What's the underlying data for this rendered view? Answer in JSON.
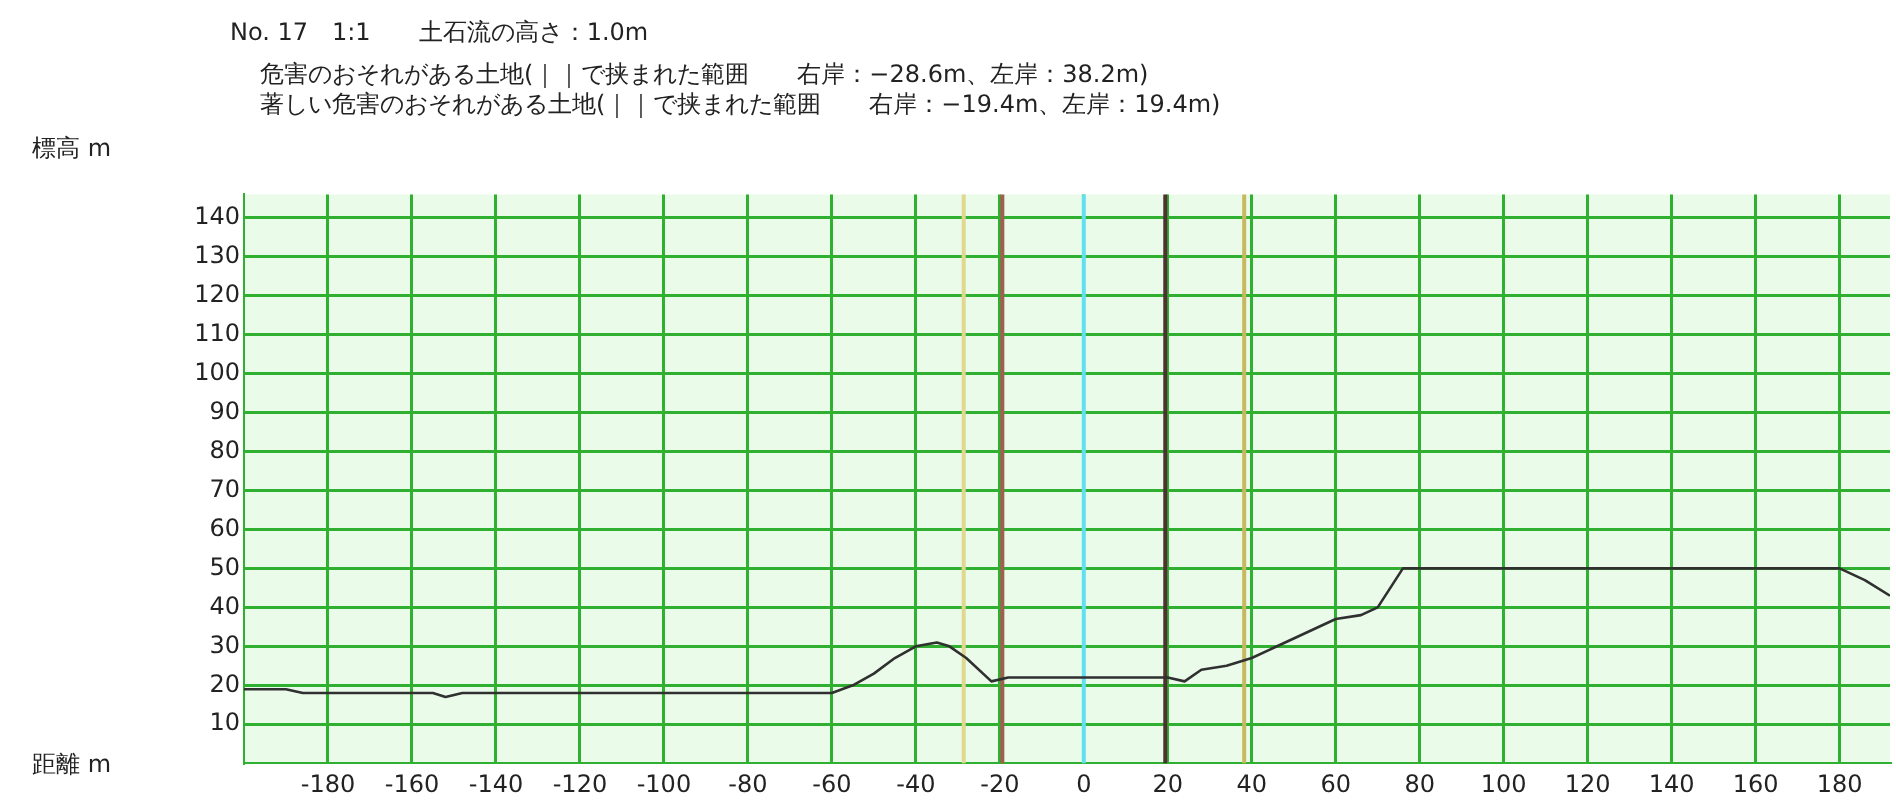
{
  "chart_data": {
    "type": "line",
    "title": "No. 17　1:1　　土石流の高さ：1.0m",
    "annotations": [
      "危害のおそれがある土地(｜｜で挟まれた範囲　　右岸：−28.6m、左岸：38.2m)",
      "著しい危害のおそれがある土地(｜｜で挟まれた範囲　　右岸：−19.4m、左岸：19.4m)"
    ],
    "ylabel": "標高 m",
    "xlabel": "距離 m",
    "series": [
      {
        "color": "#303030",
        "x": [
          -200,
          -190,
          -186,
          -155,
          -152,
          -148,
          -60,
          -55,
          -50,
          -45,
          -40,
          -35,
          -32,
          -28,
          -22,
          -18,
          20,
          24,
          28,
          34,
          40,
          50,
          60,
          66,
          70,
          76,
          180,
          186,
          192
        ],
        "values": [
          19,
          19,
          18,
          18,
          17,
          18,
          18,
          20,
          23,
          27,
          30,
          31,
          30,
          27,
          21,
          22,
          22,
          21,
          24,
          25,
          27,
          32,
          37,
          38,
          40,
          50,
          50,
          47,
          43
        ]
      }
    ],
    "xlim": [
      -200,
      192
    ],
    "ylim": [
      0,
      146
    ],
    "xticks": [
      -180,
      -160,
      -140,
      -120,
      -100,
      -80,
      -60,
      -40,
      -20,
      0,
      20,
      40,
      60,
      80,
      100,
      120,
      140,
      160,
      180
    ],
    "yticks": [
      10,
      20,
      30,
      40,
      50,
      60,
      70,
      80,
      90,
      100,
      110,
      120,
      130,
      140
    ],
    "ref_lines": [
      {
        "axis": "x",
        "value": 0,
        "color": "#60e0f0"
      },
      {
        "axis": "x",
        "value": -28.6,
        "color": "#e0d890"
      },
      {
        "axis": "x",
        "value": 38.2,
        "color": "#c8b860"
      },
      {
        "axis": "x",
        "value": -19.4,
        "color": "#a06050"
      },
      {
        "axis": "x",
        "value": 19.4,
        "color": "#503030"
      }
    ],
    "grid": true,
    "legend": false,
    "marker": "none",
    "line_style": "solid"
  }
}
